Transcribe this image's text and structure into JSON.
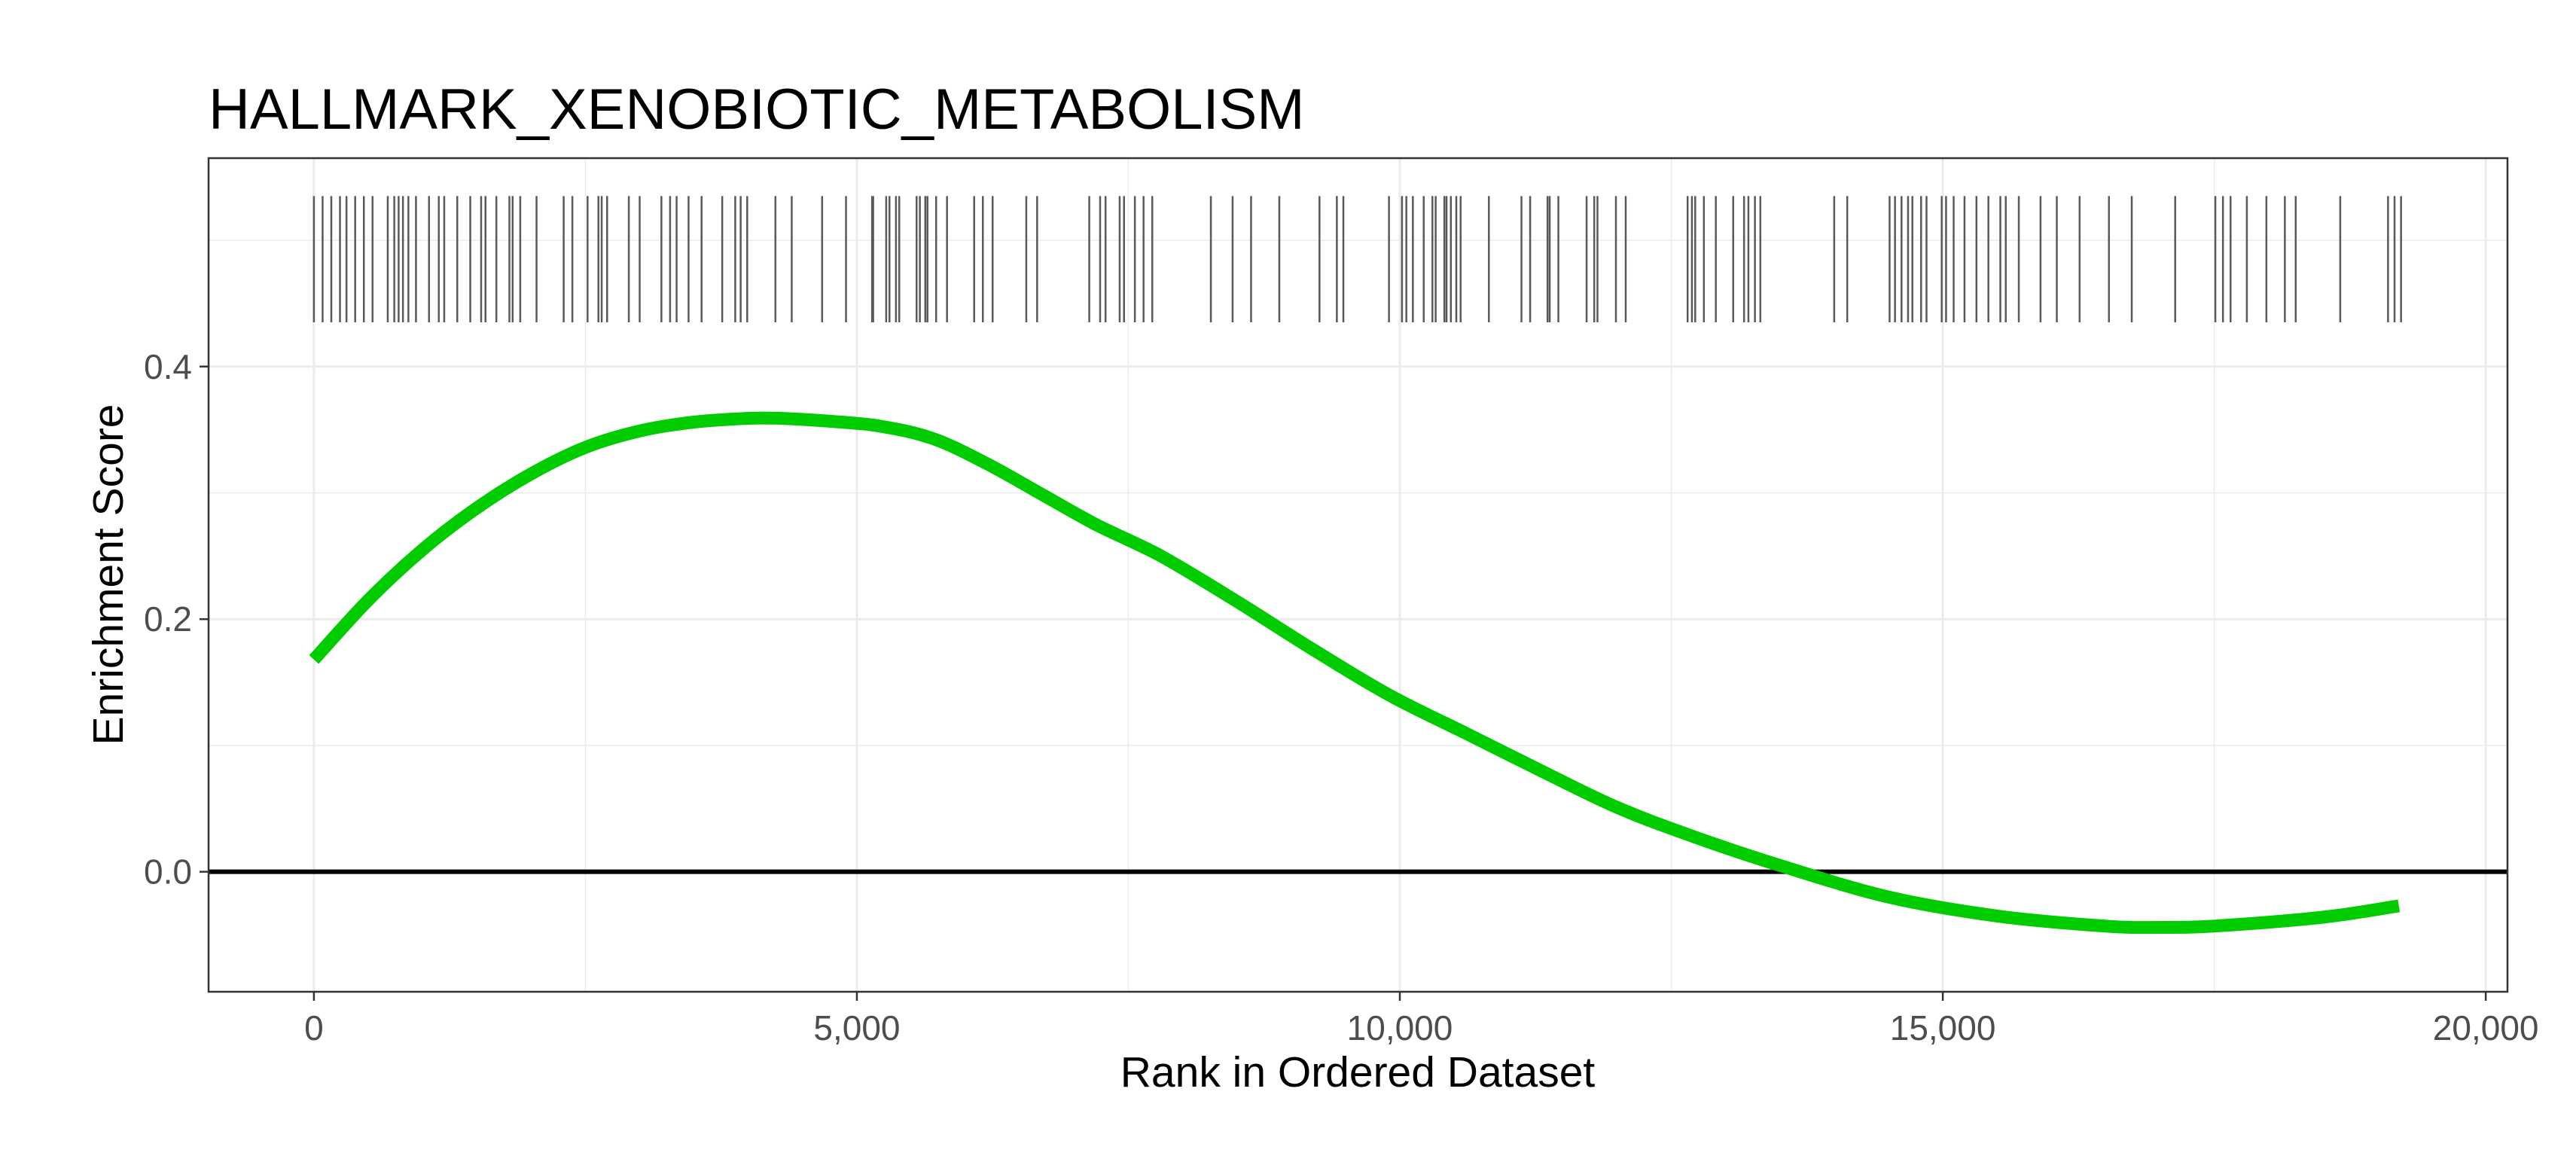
{
  "chart_data": {
    "type": "line",
    "title": "HALLMARK_XENOBIOTIC_METABOLISM",
    "xlabel": "Rank in Ordered Dataset",
    "ylabel": "Enrichment Score",
    "xlim": [
      -970,
      20200
    ],
    "ylim": [
      -0.095,
      0.565
    ],
    "x_ticks": [
      0,
      5000,
      10000,
      15000,
      20000
    ],
    "x_tick_labels": [
      "0",
      "5,000",
      "10,000",
      "15,000",
      "20,000"
    ],
    "y_ticks": [
      0.0,
      0.2,
      0.4
    ],
    "y_tick_labels": [
      "0.0",
      "0.2",
      "0.4"
    ],
    "grid": true,
    "colors": {
      "curve": "#00cc00",
      "hits": "#595959",
      "zero_line": "#000000",
      "grid": "#ebebeb",
      "panel_border": "#333333"
    },
    "hit_band": [
      0.435,
      0.535
    ],
    "series": [
      {
        "x": [
          0,
          500,
          1000,
          1500,
          2000,
          2500,
          3000,
          3500,
          4000,
          4300,
          4700,
          5200,
          5700,
          6200,
          6700,
          7200,
          7800,
          8500,
          9200,
          9900,
          10600,
          11300,
          12000,
          12700,
          13500,
          14500,
          15500,
          16500,
          17000,
          17500,
          18500,
          19200
        ],
        "y": [
          0.168,
          0.215,
          0.255,
          0.288,
          0.315,
          0.336,
          0.349,
          0.356,
          0.359,
          0.359,
          0.357,
          0.353,
          0.343,
          0.323,
          0.299,
          0.275,
          0.25,
          0.214,
          0.176,
          0.14,
          0.11,
          0.08,
          0.051,
          0.028,
          0.005,
          -0.02,
          -0.035,
          -0.043,
          -0.044,
          -0.043,
          -0.036,
          -0.027
        ]
      }
    ],
    "hits": [
      0,
      80,
      160,
      240,
      300,
      380,
      460,
      540,
      680,
      740,
      780,
      820,
      870,
      940,
      1060,
      1150,
      1200,
      1320,
      1440,
      1540,
      1580,
      1680,
      1800,
      1830,
      1900,
      2050,
      2300,
      2380,
      2520,
      2620,
      2650,
      2700,
      2900,
      3000,
      3200,
      3280,
      3340,
      3450,
      3570,
      3760,
      3880,
      3930,
      3990,
      4250,
      4400,
      4680,
      4900,
      5140,
      5150,
      5270,
      5300,
      5360,
      5390,
      5550,
      5580,
      5630,
      5650,
      5730,
      5830,
      6080,
      6160,
      6250,
      6560,
      6660,
      7140,
      7240,
      7290,
      7420,
      7460,
      7560,
      7640,
      7720,
      8260,
      8460,
      8630,
      8890,
      9260,
      9420,
      9480,
      9900,
      10020,
      10060,
      10120,
      10220,
      10300,
      10330,
      10410,
      10430,
      10470,
      10520,
      10560,
      10820,
      11120,
      11200,
      11360,
      11380,
      11460,
      11720,
      11790,
      11820,
      11990,
      12080,
      12650,
      12690,
      12720,
      12800,
      12910,
      13070,
      13170,
      13210,
      13270,
      13320,
      14000,
      14120,
      14510,
      14560,
      14620,
      14680,
      14720,
      14800,
      14850,
      14990,
      15030,
      15100,
      15200,
      15310,
      15420,
      15530,
      15580,
      15700,
      15900,
      16050,
      16260,
      16530,
      16740,
      17140,
      17510,
      17580,
      17650,
      17800,
      17980,
      18150,
      18250,
      18660,
      19100,
      19160,
      19220
    ]
  }
}
